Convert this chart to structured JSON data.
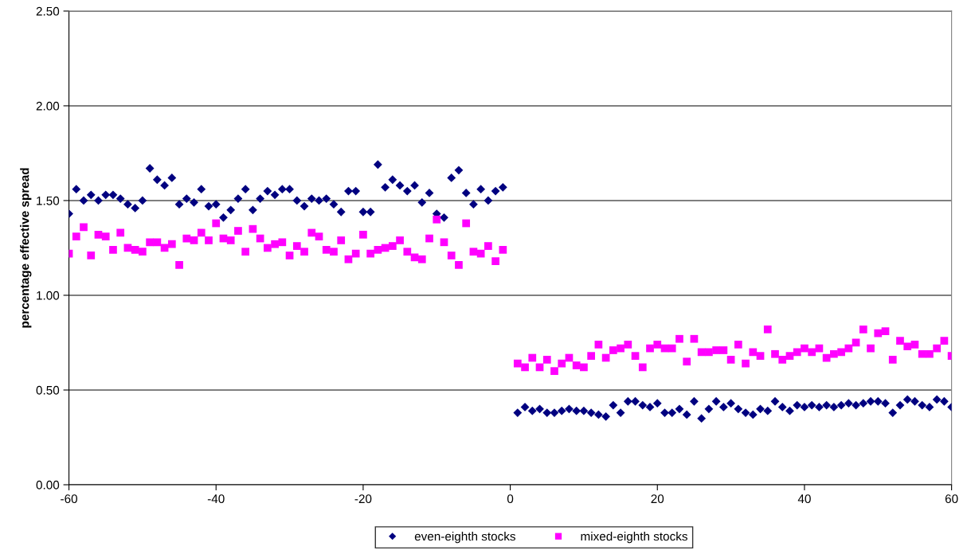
{
  "chart_data": {
    "type": "scatter",
    "ylabel": "percentage effective spread",
    "x": [
      -60,
      -59,
      -58,
      -57,
      -56,
      -55,
      -54,
      -53,
      -52,
      -51,
      -50,
      -49,
      -48,
      -47,
      -46,
      -45,
      -44,
      -43,
      -42,
      -41,
      -40,
      -39,
      -38,
      -37,
      -36,
      -35,
      -34,
      -33,
      -32,
      -31,
      -30,
      -29,
      -28,
      -27,
      -26,
      -25,
      -24,
      -23,
      -22,
      -21,
      -20,
      -19,
      -18,
      -17,
      -16,
      -15,
      -14,
      -13,
      -12,
      -11,
      -10,
      -9,
      -8,
      -7,
      -6,
      -5,
      -4,
      -3,
      -2,
      -1,
      1,
      2,
      3,
      4,
      5,
      6,
      7,
      8,
      9,
      10,
      11,
      12,
      13,
      14,
      15,
      16,
      17,
      18,
      19,
      20,
      21,
      22,
      23,
      24,
      25,
      26,
      27,
      28,
      29,
      30,
      31,
      32,
      33,
      34,
      35,
      36,
      37,
      38,
      39,
      40,
      41,
      42,
      43,
      44,
      45,
      46,
      47,
      48,
      49,
      50,
      51,
      52,
      53,
      54,
      55,
      56,
      57,
      58,
      59,
      60
    ],
    "series": [
      {
        "name": "even-eighth stocks",
        "color": "#000080",
        "marker": "diamond",
        "values": [
          1.43,
          1.56,
          1.5,
          1.53,
          1.5,
          1.53,
          1.53,
          1.51,
          1.48,
          1.46,
          1.5,
          1.67,
          1.61,
          1.58,
          1.62,
          1.48,
          1.51,
          1.49,
          1.56,
          1.47,
          1.48,
          1.41,
          1.45,
          1.51,
          1.56,
          1.45,
          1.51,
          1.55,
          1.53,
          1.56,
          1.56,
          1.5,
          1.47,
          1.51,
          1.5,
          1.51,
          1.48,
          1.44,
          1.55,
          1.55,
          1.44,
          1.44,
          1.69,
          1.57,
          1.61,
          1.58,
          1.55,
          1.58,
          1.49,
          1.54,
          1.43,
          1.41,
          1.62,
          1.66,
          1.54,
          1.48,
          1.56,
          1.5,
          1.55,
          1.57,
          0.38,
          0.41,
          0.39,
          0.4,
          0.38,
          0.38,
          0.39,
          0.4,
          0.39,
          0.39,
          0.38,
          0.37,
          0.36,
          0.42,
          0.38,
          0.44,
          0.44,
          0.42,
          0.41,
          0.43,
          0.38,
          0.38,
          0.4,
          0.37,
          0.44,
          0.35,
          0.4,
          0.44,
          0.41,
          0.43,
          0.4,
          0.38,
          0.37,
          0.4,
          0.39,
          0.44,
          0.41,
          0.39,
          0.42,
          0.41,
          0.42,
          0.41,
          0.42,
          0.41,
          0.42,
          0.43,
          0.42,
          0.43,
          0.44,
          0.44,
          0.43,
          0.38,
          0.42,
          0.45,
          0.44,
          0.42,
          0.41,
          0.45,
          0.44,
          0.41
        ]
      },
      {
        "name": "mixed-eighth stocks",
        "color": "#ff00ff",
        "marker": "square",
        "values": [
          1.22,
          1.31,
          1.36,
          1.21,
          1.32,
          1.31,
          1.24,
          1.33,
          1.25,
          1.24,
          1.23,
          1.28,
          1.28,
          1.25,
          1.27,
          1.16,
          1.3,
          1.29,
          1.33,
          1.29,
          1.38,
          1.3,
          1.29,
          1.34,
          1.23,
          1.35,
          1.3,
          1.25,
          1.27,
          1.28,
          1.21,
          1.26,
          1.23,
          1.33,
          1.31,
          1.24,
          1.23,
          1.29,
          1.19,
          1.22,
          1.32,
          1.22,
          1.24,
          1.25,
          1.26,
          1.29,
          1.23,
          1.2,
          1.19,
          1.3,
          1.4,
          1.28,
          1.21,
          1.16,
          1.38,
          1.23,
          1.22,
          1.26,
          1.18,
          1.24,
          0.64,
          0.62,
          0.67,
          0.62,
          0.66,
          0.6,
          0.64,
          0.67,
          0.63,
          0.62,
          0.68,
          0.74,
          0.67,
          0.71,
          0.72,
          0.74,
          0.68,
          0.62,
          0.72,
          0.74,
          0.72,
          0.72,
          0.77,
          0.65,
          0.77,
          0.7,
          0.7,
          0.71,
          0.71,
          0.66,
          0.74,
          0.64,
          0.7,
          0.68,
          0.82,
          0.69,
          0.66,
          0.68,
          0.7,
          0.72,
          0.7,
          0.72,
          0.67,
          0.69,
          0.7,
          0.72,
          0.75,
          0.82,
          0.72,
          0.8,
          0.81,
          0.66,
          0.76,
          0.73,
          0.74,
          0.69,
          0.69,
          0.72,
          0.76,
          0.68
        ]
      }
    ],
    "xlim": [
      -60,
      60
    ],
    "xticks": [
      -60,
      -40,
      -20,
      0,
      20,
      40,
      60
    ],
    "ylim": [
      0,
      2.5
    ],
    "yticks": [
      {
        "value": 0,
        "label": "0.00"
      },
      {
        "value": 0.5,
        "label": "0.50"
      },
      {
        "value": 1,
        "label": "1.00"
      },
      {
        "value": 1.5,
        "label": "1.50"
      },
      {
        "value": 2,
        "label": "2.00"
      },
      {
        "value": 2.5,
        "label": "2.50"
      }
    ],
    "grid": "y",
    "legend": "bottom"
  }
}
